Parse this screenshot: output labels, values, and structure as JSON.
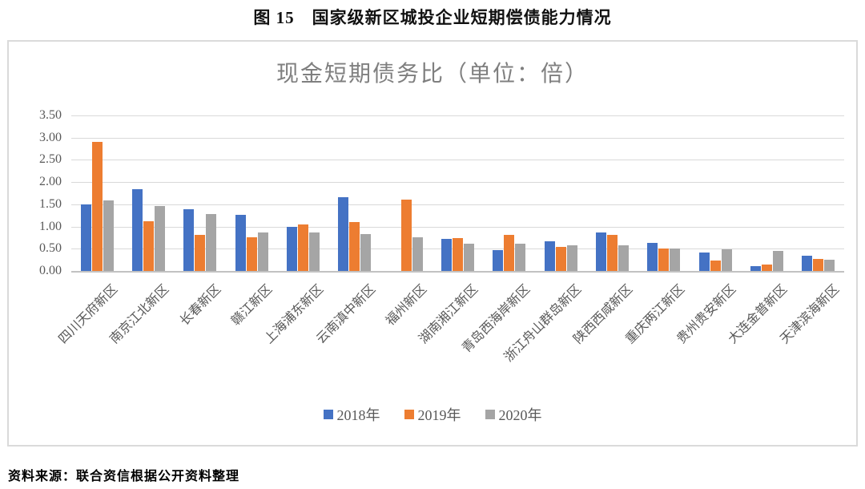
{
  "figure": {
    "title": "图 15　国家级新区城投企业短期偿债能力情况",
    "source": "资料来源：联合资信根据公开资料整理"
  },
  "chart_data": {
    "type": "bar",
    "title": "现金短期债务比（单位：倍）",
    "categories": [
      "四川天府新区",
      "南京江北新区",
      "长春新区",
      "赣江新区",
      "上海浦东新区",
      "云南滇中新区",
      "福州新区",
      "湖南湘江新区",
      "青岛西海岸新区",
      "浙江舟山群岛新区",
      "陕西西咸新区",
      "重庆两江新区",
      "贵州贵安新区",
      "大连金普新区",
      "天津滨海新区"
    ],
    "series": [
      {
        "name": "2018年",
        "color": "#4472C4",
        "values": [
          1.49,
          1.85,
          1.39,
          1.26,
          1.0,
          1.66,
          null,
          0.73,
          0.47,
          0.67,
          0.87,
          0.63,
          0.42,
          0.11,
          0.35
        ]
      },
      {
        "name": "2019年",
        "color": "#ED7D31",
        "values": [
          2.9,
          1.12,
          0.81,
          0.76,
          1.04,
          1.1,
          1.6,
          0.74,
          0.82,
          0.54,
          0.81,
          0.51,
          0.24,
          0.14,
          0.28
        ]
      },
      {
        "name": "2020年",
        "color": "#A5A5A5",
        "values": [
          1.58,
          1.46,
          1.28,
          0.87,
          0.86,
          0.83,
          0.75,
          0.61,
          0.61,
          0.58,
          0.57,
          0.51,
          0.48,
          0.45,
          0.25
        ]
      }
    ],
    "xlabel": "",
    "ylabel": "",
    "ylim": [
      0,
      3.5
    ],
    "ytick_step": 0.5,
    "yticks": [
      "0.00",
      "0.50",
      "1.00",
      "1.50",
      "2.00",
      "2.50",
      "3.00",
      "3.50"
    ],
    "grid": "horizontal-only",
    "legend_position": "bottom",
    "colors_note": {
      "gridline": "#D9D9D9",
      "axis_line": "#C2C2C2",
      "title_gray": "#7F7F7F",
      "tick_text": "#595959"
    }
  }
}
